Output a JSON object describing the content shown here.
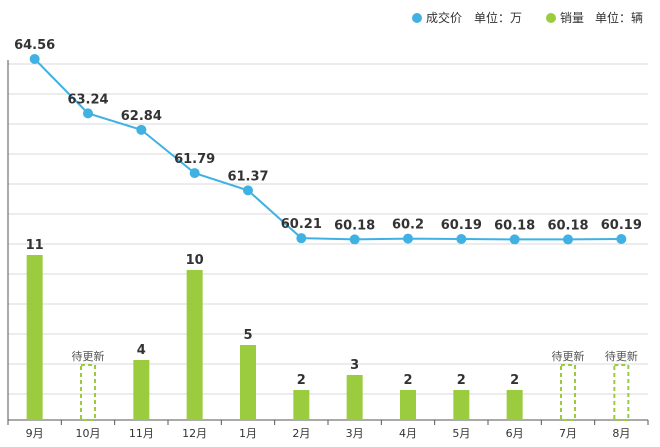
{
  "chart_data": {
    "type": "bar",
    "categories": [
      "9月",
      "10月",
      "11月",
      "12月",
      "1月",
      "2月",
      "3月",
      "4月",
      "5月",
      "6月",
      "7月",
      "8月"
    ],
    "series": [
      {
        "name": "成交价",
        "unit": "单位：万",
        "type": "line",
        "color": "#3fb1e3",
        "values": [
          64.56,
          63.24,
          62.84,
          61.79,
          61.37,
          60.21,
          60.18,
          60.2,
          60.19,
          60.18,
          60.18,
          60.19
        ],
        "labels": [
          "64.56",
          "63.24",
          "62.84",
          "61.79",
          "61.37",
          "60.21",
          "60.18",
          "60.2",
          "60.19",
          "60.18",
          "60.18",
          "60.19"
        ]
      },
      {
        "name": "销量",
        "unit": "单位：辆",
        "type": "bar",
        "color": "#9bcc3f",
        "values": [
          11,
          null,
          4,
          10,
          5,
          2,
          3,
          2,
          2,
          2,
          null,
          null
        ],
        "labels": [
          "11",
          "",
          "4",
          "10",
          "5",
          "2",
          "3",
          "2",
          "2",
          "2",
          "",
          ""
        ]
      }
    ],
    "pending_label": "待更新",
    "legend_position": "top-right",
    "grid": true
  }
}
